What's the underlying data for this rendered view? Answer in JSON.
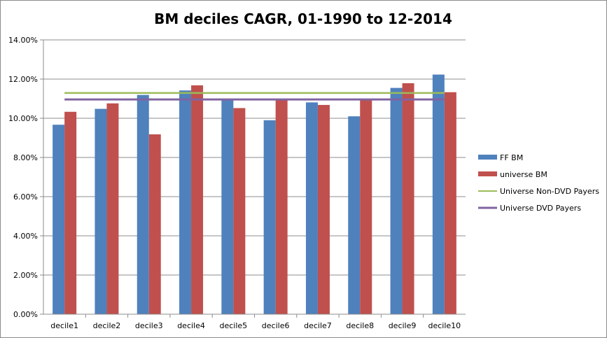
{
  "chart_data": {
    "type": "bar",
    "title": "BM deciles CAGR, 01-1990 to 12-2014",
    "xlabel": "",
    "ylabel": "",
    "categories": [
      "decile1",
      "decile2",
      "decile3",
      "decile4",
      "decile5",
      "decile6",
      "decile7",
      "decile8",
      "decile9",
      "decile10"
    ],
    "series": [
      {
        "name": "FF BM",
        "color": "#4f81bd",
        "values": [
          9.67,
          10.48,
          11.19,
          11.42,
          10.97,
          9.9,
          10.81,
          10.1,
          11.55,
          12.23
        ]
      },
      {
        "name": "universe BM",
        "color": "#c0504d",
        "values": [
          10.33,
          10.76,
          9.18,
          11.68,
          10.52,
          10.94,
          10.68,
          10.93,
          11.79,
          11.33
        ]
      }
    ],
    "reference_lines": [
      {
        "name": "Universe Non-DVD Payers",
        "color": "#9bbb59",
        "value": 11.29
      },
      {
        "name": "Universe DVD Payers",
        "color": "#8064a2",
        "value": 10.96
      }
    ],
    "ylim": [
      0,
      14
    ],
    "ytick_values": [
      0,
      2,
      4,
      6,
      8,
      10,
      12,
      14
    ],
    "ytick_labels": [
      "0.00%",
      "2.00%",
      "4.00%",
      "6.00%",
      "8.00%",
      "10.00%",
      "12.00%",
      "14.00%"
    ],
    "grid": true,
    "legend_position": "right"
  }
}
